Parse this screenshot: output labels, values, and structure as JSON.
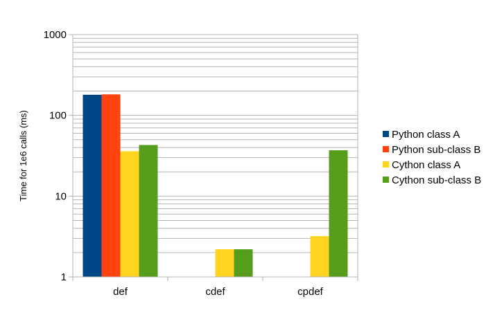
{
  "chart_data": {
    "type": "bar",
    "ylabel": "Time for 1e6 calls (ms)",
    "yscale": "log",
    "ylim": [
      1,
      1000
    ],
    "yticks": [
      "1",
      "10",
      "100",
      "1000"
    ],
    "categories": [
      "def",
      "cdef",
      "cpdef"
    ],
    "grid": "horizontal major and minor",
    "legend_position": "right",
    "series": [
      {
        "name": "Python class A",
        "color": "#004586",
        "values": [
          180,
          null,
          null
        ]
      },
      {
        "name": "Python sub-class B",
        "color": "#ff420e",
        "values": [
          182,
          null,
          null
        ]
      },
      {
        "name": "Cython class A",
        "color": "#ffd320",
        "values": [
          36,
          2.2,
          3.2
        ]
      },
      {
        "name": "Cython sub-class B",
        "color": "#579d1c",
        "values": [
          43,
          2.2,
          37
        ]
      }
    ]
  }
}
